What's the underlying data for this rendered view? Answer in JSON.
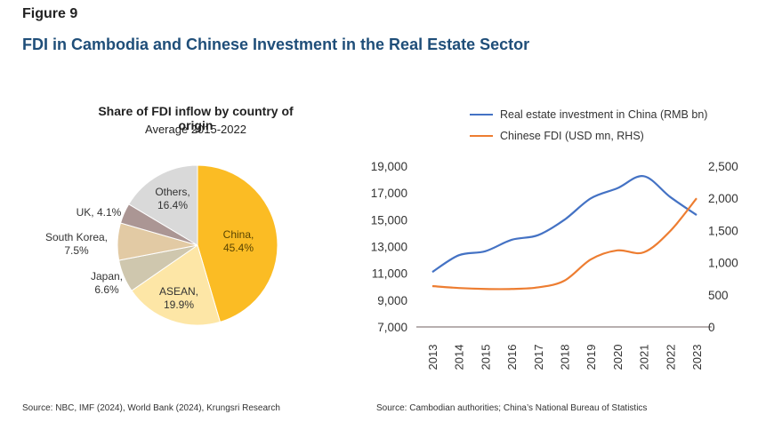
{
  "figure": {
    "label": "Figure 9",
    "title": "FDI in Cambodia and Chinese Investment in the Real Estate Sector"
  },
  "sources": {
    "left": "Source: NBC, IMF (2024), World Bank (2024), Krungsri Research",
    "right": "Source: Cambodian authorities; China’s National Bureau of Statistics"
  },
  "chart_data": [
    {
      "type": "pie",
      "title": "Share of FDI inflow by country of origin",
      "subtitle": "Average 2015-2022",
      "slices": [
        {
          "label": "China",
          "value": 45.4,
          "text": "China,",
          "pct_text": "45.4%",
          "color": "#fbbc24"
        },
        {
          "label": "ASEAN",
          "value": 19.9,
          "text": "ASEAN,",
          "pct_text": "19.9%",
          "color": "#fde6a6"
        },
        {
          "label": "Japan",
          "value": 6.6,
          "text": "Japan,",
          "pct_text": "6.6%",
          "color": "#cfc7ae"
        },
        {
          "label": "South Korea",
          "value": 7.5,
          "text": "South Korea,",
          "pct_text": "7.5%",
          "color": "#e2caa4"
        },
        {
          "label": "UK",
          "value": 4.1,
          "text": "UK, 4.1%",
          "pct_text": "",
          "color": "#ab9694"
        },
        {
          "label": "Others",
          "value": 16.4,
          "text": "Others,",
          "pct_text": "16.4%",
          "color": "#d9d9d9"
        }
      ]
    },
    {
      "type": "line",
      "title": "",
      "x": [
        2013,
        2014,
        2015,
        2016,
        2017,
        2018,
        2019,
        2020,
        2021,
        2022,
        2023
      ],
      "x_tick_labels": [
        "2013",
        "2014",
        "2015",
        "2016",
        "2017",
        "2018",
        "2019",
        "2020",
        "2021",
        "2022",
        "2023"
      ],
      "legend_position": "top",
      "grid": false,
      "y_left": {
        "min": 7000,
        "max": 19000,
        "ticks": [
          7000,
          9000,
          11000,
          13000,
          15000,
          17000,
          19000
        ],
        "tick_labels": [
          "7,000",
          "9,000",
          "11,000",
          "13,000",
          "15,000",
          "17,000",
          "19,000"
        ]
      },
      "y_right": {
        "min": 0,
        "max": 2500,
        "ticks": [
          0,
          500,
          1000,
          1500,
          2000,
          2500
        ],
        "tick_labels": [
          "0",
          "500",
          "1,000",
          "1,500",
          "2,000",
          "2,500"
        ]
      },
      "series": [
        {
          "name": "Real estate investment in China (RMB bn)",
          "axis": "left",
          "color": "#4472c4",
          "values": [
            11100,
            12350,
            12650,
            13500,
            13850,
            15000,
            16600,
            17350,
            18250,
            16700,
            15350
          ]
        },
        {
          "name": "Chinese FDI (USD mn, RHS)",
          "axis": "right",
          "color": "#ed7d31",
          "values": [
            635,
            605,
            590,
            590,
            615,
            720,
            1050,
            1190,
            1160,
            1490,
            2000
          ]
        }
      ]
    }
  ]
}
